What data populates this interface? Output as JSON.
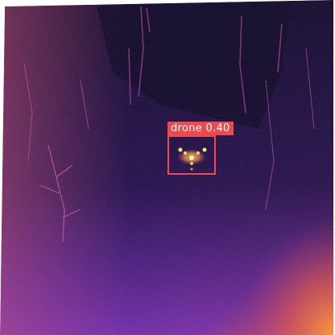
{
  "detection": {
    "class_label": "drone",
    "confidence": "0.40",
    "box_color": "#ee4a4d",
    "label_text_color": "#ffffff"
  },
  "palette": {
    "dark": "#1a0640",
    "mid": "#5a1ca6",
    "warm": "#c2359a",
    "hot": "#f08a32",
    "white": "#ffffff"
  }
}
